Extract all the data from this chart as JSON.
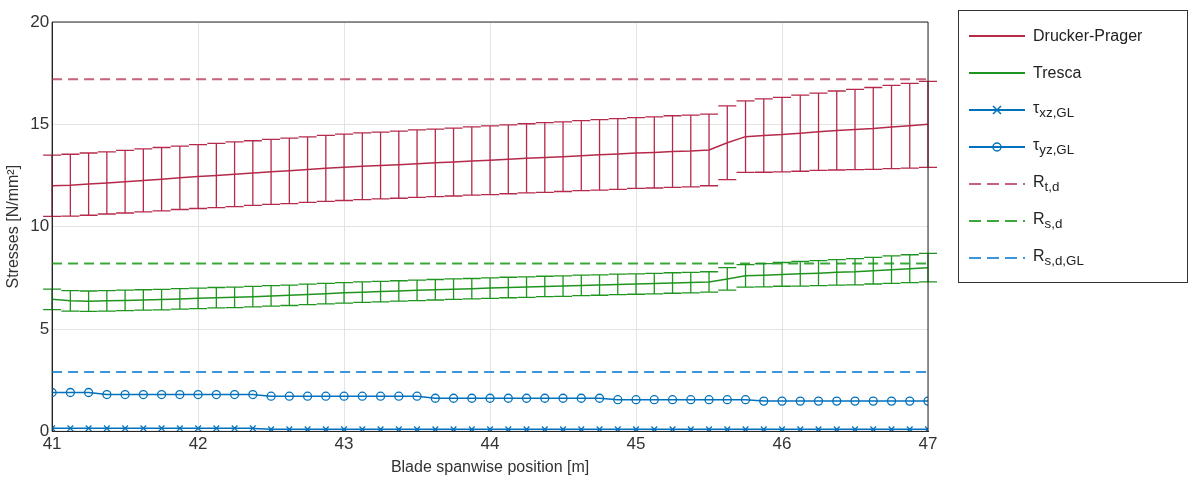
{
  "chart_data": {
    "type": "line",
    "xlabel": "Blade spanwise position [m]",
    "ylabel": "Stresses [N/mm²]",
    "x": [
      41,
      41.125,
      41.25,
      41.375,
      41.5,
      41.625,
      41.75,
      41.875,
      42,
      42.125,
      42.25,
      42.375,
      42.5,
      42.625,
      42.75,
      42.875,
      43,
      43.125,
      43.25,
      43.375,
      43.5,
      43.625,
      43.75,
      43.875,
      44,
      44.125,
      44.25,
      44.375,
      44.5,
      44.625,
      44.75,
      44.875,
      45,
      45.125,
      45.25,
      45.375,
      45.5,
      45.625,
      45.75,
      45.875,
      46,
      46.125,
      46.25,
      46.375,
      46.5,
      46.625,
      46.75,
      46.875,
      47
    ],
    "series": [
      {
        "name": "Drucker-Prager",
        "color": "#b52a4a",
        "marker": "none",
        "line_style": "solid",
        "values": [
          12.0,
          12.03,
          12.08,
          12.14,
          12.2,
          12.26,
          12.32,
          12.39,
          12.45,
          12.5,
          12.56,
          12.62,
          12.68,
          12.73,
          12.79,
          12.85,
          12.9,
          12.95,
          12.99,
          13.03,
          13.08,
          13.12,
          13.16,
          13.21,
          13.25,
          13.29,
          13.34,
          13.38,
          13.42,
          13.47,
          13.51,
          13.55,
          13.6,
          13.63,
          13.67,
          13.7,
          13.75,
          14.1,
          14.4,
          14.45,
          14.5,
          14.57,
          14.64,
          14.7,
          14.75,
          14.8,
          14.87,
          14.93,
          15.0
        ],
        "errors": [
          1.5,
          1.51,
          1.52,
          1.52,
          1.53,
          1.54,
          1.55,
          1.55,
          1.56,
          1.57,
          1.58,
          1.58,
          1.59,
          1.6,
          1.6,
          1.61,
          1.62,
          1.63,
          1.63,
          1.64,
          1.65,
          1.65,
          1.66,
          1.67,
          1.68,
          1.68,
          1.69,
          1.7,
          1.7,
          1.71,
          1.72,
          1.73,
          1.73,
          1.74,
          1.75,
          1.75,
          1.75,
          1.8,
          1.75,
          1.79,
          1.82,
          1.86,
          1.89,
          1.93,
          1.96,
          2.0,
          2.03,
          2.07,
          2.1
        ]
      },
      {
        "name": "Tresca",
        "color": "#1f951f",
        "marker": "none",
        "line_style": "solid",
        "values": [
          6.45,
          6.38,
          6.36,
          6.38,
          6.4,
          6.42,
          6.44,
          6.47,
          6.5,
          6.53,
          6.55,
          6.58,
          6.62,
          6.65,
          6.69,
          6.73,
          6.77,
          6.8,
          6.83,
          6.86,
          6.89,
          6.92,
          6.95,
          6.97,
          7.0,
          7.03,
          7.05,
          7.08,
          7.1,
          7.13,
          7.15,
          7.18,
          7.2,
          7.22,
          7.25,
          7.27,
          7.3,
          7.45,
          7.6,
          7.63,
          7.67,
          7.7,
          7.73,
          7.77,
          7.8,
          7.85,
          7.9,
          7.95,
          8.0
        ],
        "errors": [
          0.5,
          0.5,
          0.5,
          0.5,
          0.5,
          0.5,
          0.5,
          0.5,
          0.5,
          0.5,
          0.5,
          0.5,
          0.5,
          0.5,
          0.5,
          0.5,
          0.5,
          0.5,
          0.5,
          0.5,
          0.5,
          0.5,
          0.5,
          0.5,
          0.5,
          0.5,
          0.5,
          0.5,
          0.5,
          0.5,
          0.5,
          0.5,
          0.5,
          0.5,
          0.5,
          0.5,
          0.5,
          0.55,
          0.55,
          0.57,
          0.58,
          0.6,
          0.61,
          0.62,
          0.64,
          0.65,
          0.67,
          0.68,
          0.7
        ]
      },
      {
        "name": "τ$_{xz,GL}$",
        "color": "#0072bd",
        "marker": "cross",
        "line_style": "solid",
        "values": [
          0.15,
          0.15,
          0.15,
          0.15,
          0.15,
          0.15,
          0.15,
          0.15,
          0.15,
          0.15,
          0.15,
          0.15,
          0.1,
          0.1,
          0.1,
          0.1,
          0.1,
          0.1,
          0.1,
          0.1,
          0.1,
          0.1,
          0.1,
          0.1,
          0.1,
          0.1,
          0.1,
          0.1,
          0.1,
          0.1,
          0.1,
          0.1,
          0.1,
          0.1,
          0.1,
          0.1,
          0.1,
          0.1,
          0.1,
          0.1,
          0.1,
          0.1,
          0.1,
          0.1,
          0.1,
          0.1,
          0.1,
          0.1,
          0.1
        ]
      },
      {
        "name": "τ$_{yz,GL}$",
        "color": "#0072bd",
        "marker": "circle",
        "line_style": "solid",
        "values": [
          1.9,
          1.9,
          1.9,
          1.8,
          1.8,
          1.8,
          1.8,
          1.8,
          1.8,
          1.8,
          1.8,
          1.8,
          1.72,
          1.72,
          1.72,
          1.72,
          1.72,
          1.72,
          1.72,
          1.72,
          1.72,
          1.62,
          1.62,
          1.62,
          1.62,
          1.62,
          1.62,
          1.62,
          1.62,
          1.62,
          1.62,
          1.55,
          1.55,
          1.55,
          1.55,
          1.55,
          1.55,
          1.55,
          1.55,
          1.48,
          1.48,
          1.48,
          1.48,
          1.48,
          1.48,
          1.48,
          1.48,
          1.48,
          1.48
        ]
      }
    ],
    "ref_lines": [
      {
        "axis": "y",
        "value": 17.2,
        "label": "R$_{t,d}$",
        "color": "#c8607a",
        "line_style": "dashed"
      },
      {
        "axis": "y",
        "value": 8.2,
        "label": "R$_{s,d}$",
        "color": "#3ca83c",
        "line_style": "dashed"
      },
      {
        "axis": "y",
        "value": 2.9,
        "label": "R$_{s,d,GL}$",
        "color": "#3a96d8",
        "line_style": "dashed"
      }
    ],
    "xlim": [
      41,
      47
    ],
    "xticks": [
      41,
      42,
      43,
      44,
      45,
      46,
      47
    ],
    "ylim": [
      0,
      20
    ],
    "yticks": [
      0,
      5,
      10,
      15,
      20
    ],
    "grid": true,
    "legend": "top right"
  }
}
